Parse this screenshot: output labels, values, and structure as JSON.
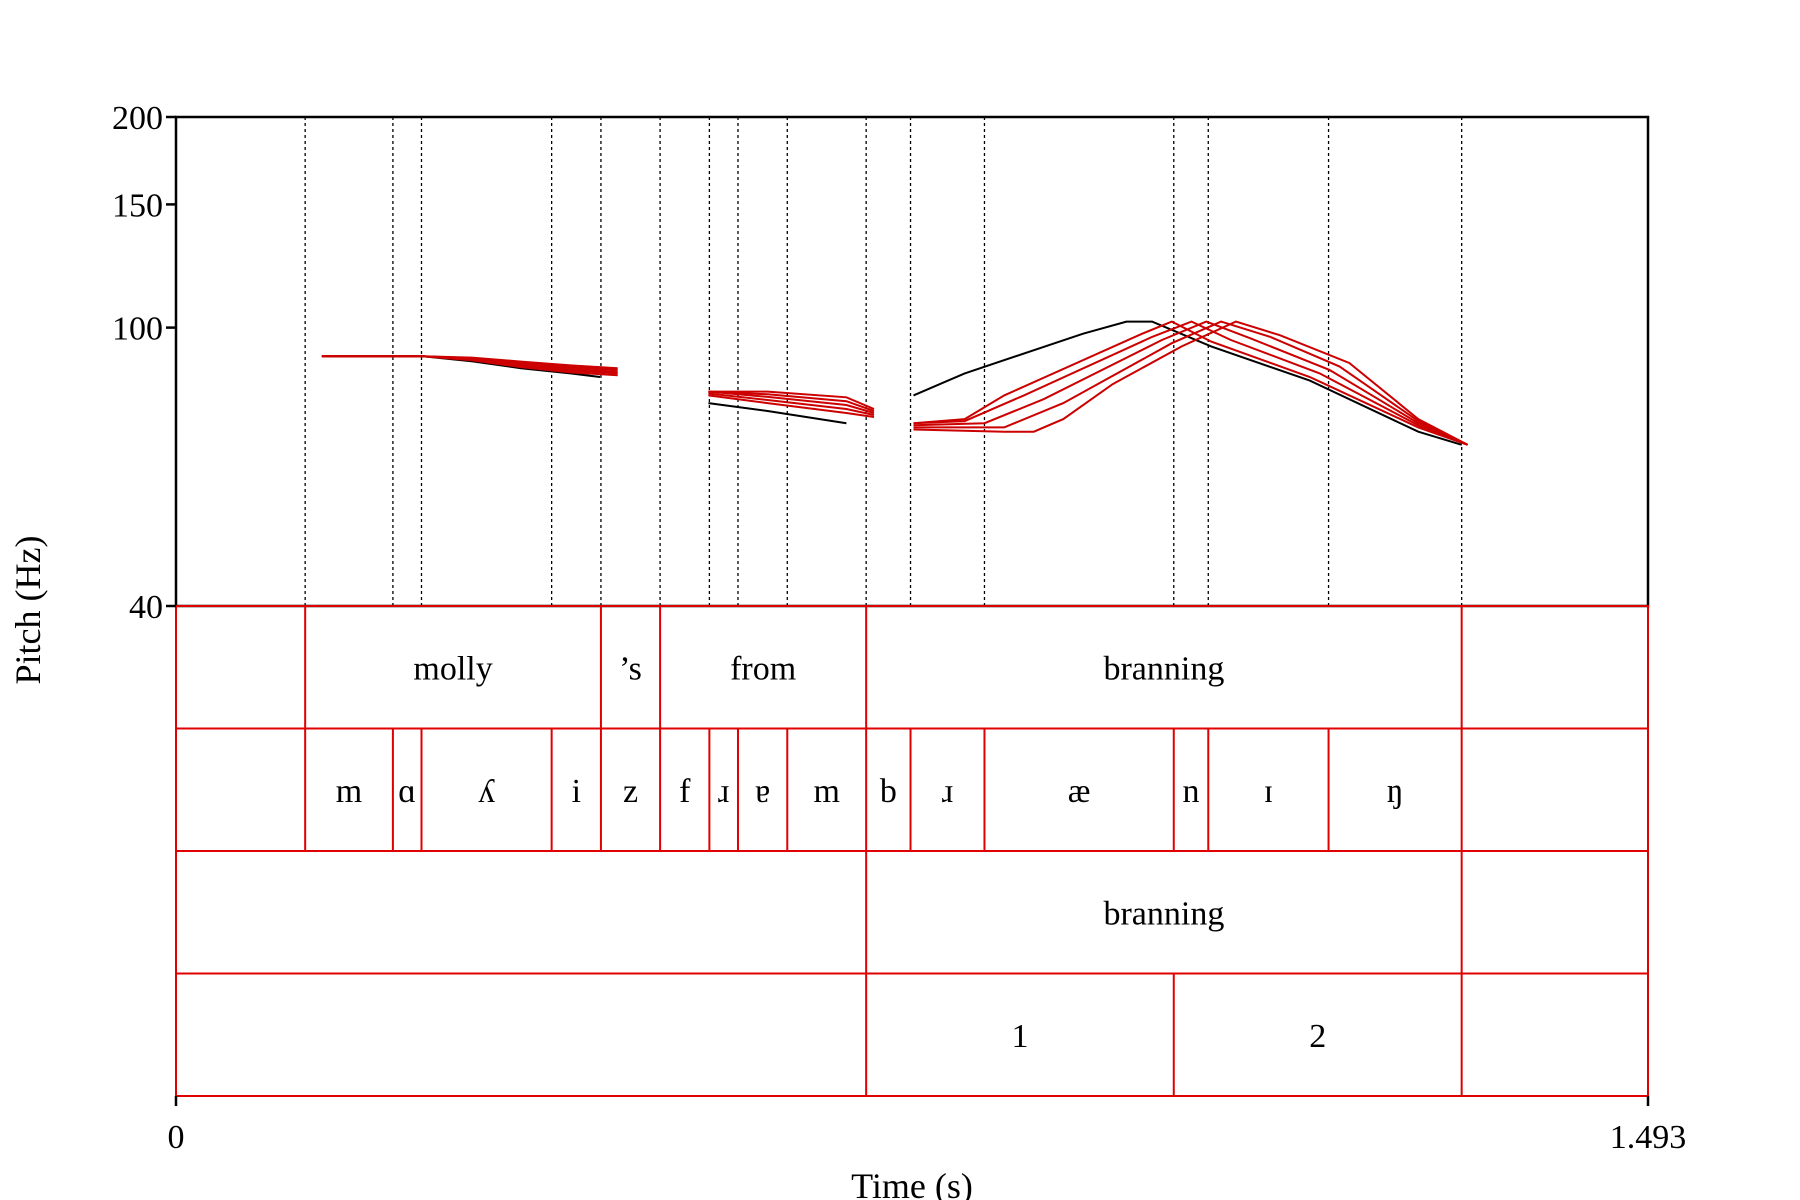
{
  "chart_data": {
    "type": "line",
    "ylabel": "Pitch (Hz)",
    "xlabel": "Time (s)",
    "xlim": [
      0,
      1.493
    ],
    "x_tick_labels": [
      "0",
      "1.493"
    ],
    "y_ticks": [
      {
        "value": 40,
        "label": "40"
      },
      {
        "value": 100,
        "label": "100"
      },
      {
        "value": 150,
        "label": "150"
      },
      {
        "value": 200,
        "label": "200"
      }
    ],
    "segment_boundaries": [
      0.131,
      0.22,
      0.249,
      0.381,
      0.431,
      0.491,
      0.541,
      0.57,
      0.62,
      0.7,
      0.745,
      0.82,
      1.012,
      1.047,
      1.169,
      1.304
    ],
    "tiers": [
      {
        "name": "words",
        "intervals": [
          {
            "start": 0.131,
            "end": 0.431,
            "label": "molly"
          },
          {
            "start": 0.431,
            "end": 0.491,
            "label": "’s"
          },
          {
            "start": 0.491,
            "end": 0.7,
            "label": "from"
          },
          {
            "start": 0.7,
            "end": 1.304,
            "label": "branning"
          }
        ]
      },
      {
        "name": "phones",
        "intervals": [
          {
            "start": 0.131,
            "end": 0.22,
            "label": "m"
          },
          {
            "start": 0.22,
            "end": 0.249,
            "label": "ɑ"
          },
          {
            "start": 0.249,
            "end": 0.381,
            "label": "ʎ"
          },
          {
            "start": 0.381,
            "end": 0.431,
            "label": "i"
          },
          {
            "start": 0.431,
            "end": 0.491,
            "label": "z"
          },
          {
            "start": 0.491,
            "end": 0.541,
            "label": "f"
          },
          {
            "start": 0.541,
            "end": 0.57,
            "label": "ɹ"
          },
          {
            "start": 0.57,
            "end": 0.62,
            "label": "ɐ"
          },
          {
            "start": 0.62,
            "end": 0.7,
            "label": "m"
          },
          {
            "start": 0.7,
            "end": 0.745,
            "label": "b"
          },
          {
            "start": 0.745,
            "end": 0.82,
            "label": "ɹ"
          },
          {
            "start": 0.82,
            "end": 1.012,
            "label": "æ"
          },
          {
            "start": 1.012,
            "end": 1.047,
            "label": "n"
          },
          {
            "start": 1.047,
            "end": 1.169,
            "label": "ɪ"
          },
          {
            "start": 1.169,
            "end": 1.304,
            "label": "ŋ"
          }
        ]
      },
      {
        "name": "focus",
        "intervals": [
          {
            "start": 0.7,
            "end": 1.304,
            "label": "branning"
          }
        ]
      },
      {
        "name": "syllables",
        "intervals": [
          {
            "start": 0.7,
            "end": 1.012,
            "label": "1"
          },
          {
            "start": 1.012,
            "end": 1.304,
            "label": "2"
          }
        ]
      }
    ],
    "series": [
      {
        "color": "#000000",
        "segments": [
          [
            [
              0.148,
              91
            ],
            [
              0.25,
              91
            ],
            [
              0.3,
              89.5
            ],
            [
              0.35,
              87.5
            ],
            [
              0.4,
              86
            ],
            [
              0.43,
              85
            ]
          ],
          [
            [
              0.54,
              78
            ],
            [
              0.6,
              76
            ],
            [
              0.68,
              73
            ]
          ],
          [
            [
              0.748,
              80
            ],
            [
              0.8,
              86
            ],
            [
              0.92,
              98
            ],
            [
              0.964,
              102
            ],
            [
              0.99,
              102
            ],
            [
              1.05,
              94
            ],
            [
              1.15,
              84
            ],
            [
              1.26,
              71
            ],
            [
              1.304,
              68
            ]
          ]
        ]
      },
      {
        "color": "#cc0000",
        "segments": [
          [
            [
              0.148,
              91
            ],
            [
              0.25,
              91
            ],
            [
              0.3,
              89.8
            ],
            [
              0.35,
              87.8
            ],
            [
              0.4,
              86.3
            ],
            [
              0.448,
              85.5
            ]
          ],
          [
            [
              0.54,
              80
            ],
            [
              0.6,
              78
            ],
            [
              0.68,
              75.5
            ],
            [
              0.708,
              74.5
            ]
          ],
          [
            [
              0.748,
              73
            ],
            [
              0.8,
              74
            ],
            [
              0.84,
              80
            ],
            [
              0.98,
              98
            ],
            [
              1.01,
              102
            ],
            [
              1.05,
              95.5
            ],
            [
              1.15,
              85
            ],
            [
              1.26,
              72
            ],
            [
              1.31,
              68
            ]
          ]
        ]
      },
      {
        "color": "#cc0000",
        "segments": [
          [
            [
              0.148,
              91
            ],
            [
              0.25,
              91
            ],
            [
              0.3,
              90
            ],
            [
              0.35,
              88.2
            ],
            [
              0.4,
              86.8
            ],
            [
              0.448,
              86
            ]
          ],
          [
            [
              0.54,
              80.5
            ],
            [
              0.6,
              78.8
            ],
            [
              0.68,
              76.5
            ],
            [
              0.708,
              75
            ]
          ],
          [
            [
              0.748,
              73
            ],
            [
              0.8,
              73.5
            ],
            [
              0.86,
              80
            ],
            [
              0.99,
              97
            ],
            [
              1.03,
              102
            ],
            [
              1.07,
              96
            ],
            [
              1.16,
              86
            ],
            [
              1.26,
              72.5
            ],
            [
              1.31,
              68
            ]
          ]
        ]
      },
      {
        "color": "#cc0000",
        "segments": [
          [
            [
              0.148,
              91
            ],
            [
              0.25,
              91
            ],
            [
              0.3,
              90.2
            ],
            [
              0.35,
              88.6
            ],
            [
              0.4,
              87.3
            ],
            [
              0.448,
              86.5
            ]
          ],
          [
            [
              0.54,
              81
            ],
            [
              0.6,
              79.6
            ],
            [
              0.68,
              77.5
            ],
            [
              0.708,
              75.5
            ]
          ],
          [
            [
              0.748,
              72.5
            ],
            [
              0.82,
              73
            ],
            [
              0.88,
              79
            ],
            [
              1.0,
              96
            ],
            [
              1.045,
              102
            ],
            [
              1.09,
              96.5
            ],
            [
              1.17,
              87
            ],
            [
              1.26,
              73
            ],
            [
              1.31,
              68
            ]
          ]
        ]
      },
      {
        "color": "#cc0000",
        "segments": [
          [
            [
              0.148,
              91
            ],
            [
              0.25,
              91
            ],
            [
              0.3,
              90.4
            ],
            [
              0.35,
              89
            ],
            [
              0.4,
              87.8
            ],
            [
              0.448,
              87
            ]
          ],
          [
            [
              0.54,
              81
            ],
            [
              0.6,
              80.3
            ],
            [
              0.68,
              78.5
            ],
            [
              0.708,
              76
            ]
          ],
          [
            [
              0.748,
              72
            ],
            [
              0.84,
              72
            ],
            [
              0.9,
              78
            ],
            [
              1.01,
              95
            ],
            [
              1.06,
              102
            ],
            [
              1.11,
              97
            ],
            [
              1.18,
              88
            ],
            [
              1.26,
              73.5
            ],
            [
              1.31,
              68
            ]
          ]
        ]
      },
      {
        "color": "#cc0000",
        "segments": [
          [
            [
              0.148,
              91
            ],
            [
              0.25,
              91
            ],
            [
              0.3,
              90.6
            ],
            [
              0.35,
              89.4
            ],
            [
              0.4,
              88.3
            ],
            [
              0.448,
              87.5
            ]
          ],
          [
            [
              0.54,
              81
            ],
            [
              0.6,
              81
            ],
            [
              0.68,
              79.5
            ],
            [
              0.708,
              76.5
            ]
          ],
          [
            [
              0.748,
              71.5
            ],
            [
              0.84,
              71
            ],
            [
              0.87,
              71
            ],
            [
              0.9,
              74
            ],
            [
              0.95,
              83
            ],
            [
              1.02,
              94
            ],
            [
              1.075,
              102
            ],
            [
              1.12,
              97.5
            ],
            [
              1.19,
              89
            ],
            [
              1.26,
              74
            ],
            [
              1.31,
              68
            ]
          ]
        ]
      }
    ]
  }
}
